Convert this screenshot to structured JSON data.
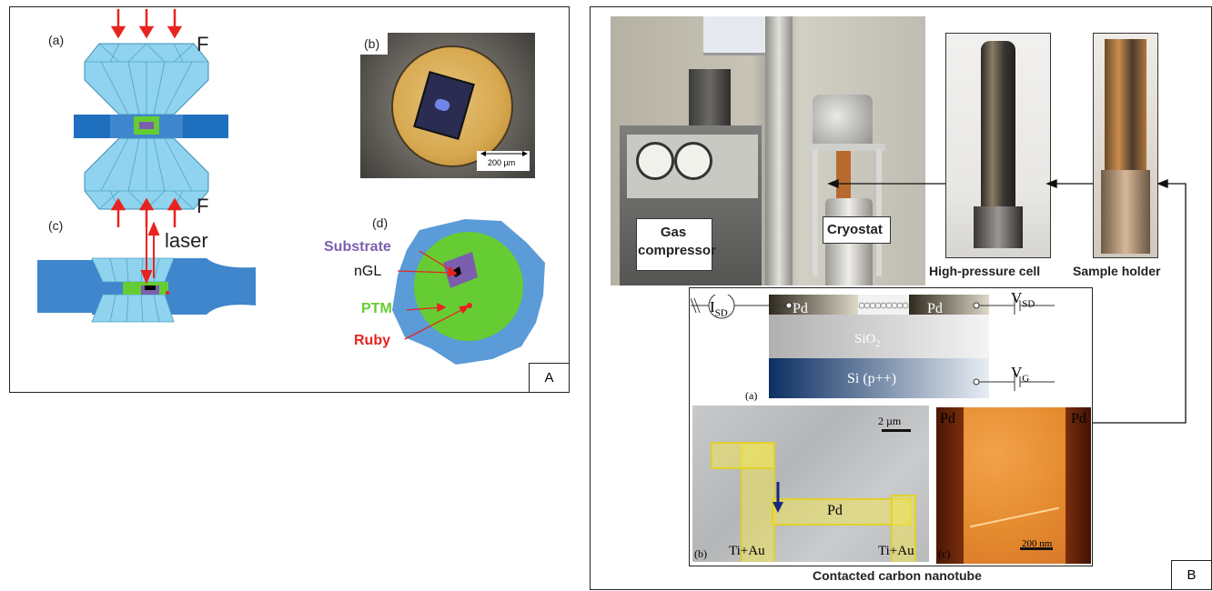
{
  "panelA": {
    "tag": "A",
    "sub_a": "(a)",
    "sub_b": "(b)",
    "sub_c": "(c)",
    "sub_d": "(d)",
    "force_top": "F",
    "force_bottom": "F",
    "laser": "laser",
    "scale_bar": "200 µm",
    "legend": {
      "substrate": "Substrate",
      "ngl": "nGL",
      "ptm": "PTM",
      "ruby": "Ruby"
    },
    "colors": {
      "substrate": "#7b5fae",
      "ptm": "#66cc33",
      "ruby": "#e8231f",
      "gasket": "#3f86cc",
      "diamond": "#8fd3ee",
      "arrow": "#e8231f"
    }
  },
  "panelB": {
    "tag": "B",
    "gas_compressor": "Gas\ncompressor",
    "cryostat": "Cryostat",
    "high_pressure_cell": "High-pressure cell",
    "sample_holder": "Sample holder",
    "device": {
      "isd": "I",
      "isd_sub": "SD",
      "vsd": "V",
      "vsd_sub": "SD",
      "vg": "V",
      "vg_sub": "G",
      "pd_left": "Pd",
      "pd_right": "Pd",
      "sio2": "SiO",
      "sio2_sub": "2",
      "si": "Si (p++)",
      "sub_a": "(a)",
      "sub_b": "(b)",
      "sub_c": "(c)",
      "sem_scale": "2 µm",
      "sem_pd": "Pd",
      "ti_au_left": "Ti+Au",
      "ti_au_right": "Ti+Au",
      "afm_pd_left": "Pd",
      "afm_pd_right": "Pd",
      "afm_scale": "200 nm"
    },
    "caption": "Contacted carbon nanotube"
  }
}
